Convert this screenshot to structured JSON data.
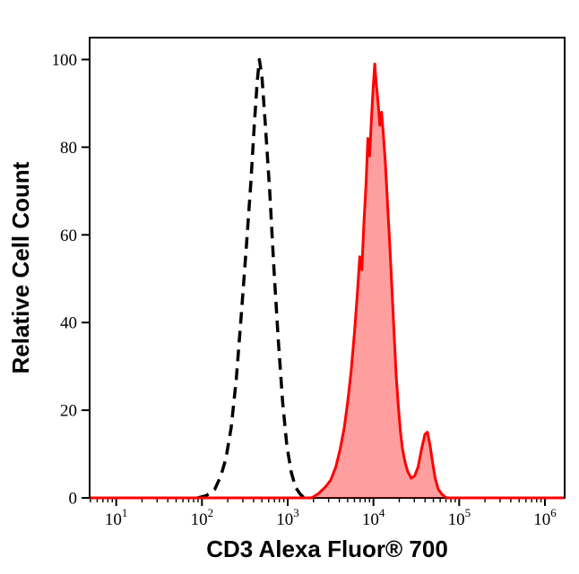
{
  "chart_data": {
    "type": "area",
    "title": "",
    "xlabel": "CD3 Alexa Fluor® 700",
    "ylabel": "Relative Cell Count",
    "x_scale": "log10",
    "xlim_log": [
      0.69,
      6.23
    ],
    "ylim": [
      0,
      105
    ],
    "grid": false,
    "legend": "none",
    "background_color": "#ffffff",
    "axis_color": "#000000",
    "y_ticks": [
      0,
      20,
      40,
      60,
      80,
      100
    ],
    "x_tick_base": "10",
    "x_tick_exponents": [
      1,
      2,
      3,
      4,
      5,
      6
    ],
    "series": [
      {
        "name": "dashed-black-control-curve",
        "color": "#000000",
        "fill": "none",
        "dash": "13 8",
        "stroke_width": 3.5,
        "peak_x": 470,
        "peak_y": 100,
        "points": [
          [
            1.95,
            0
          ],
          [
            2.05,
            0.5
          ],
          [
            2.15,
            2
          ],
          [
            2.22,
            5
          ],
          [
            2.28,
            9
          ],
          [
            2.34,
            16
          ],
          [
            2.4,
            27
          ],
          [
            2.46,
            42
          ],
          [
            2.52,
            58
          ],
          [
            2.57,
            72
          ],
          [
            2.61,
            85
          ],
          [
            2.645,
            95
          ],
          [
            2.67,
            100
          ],
          [
            2.7,
            96
          ],
          [
            2.74,
            85
          ],
          [
            2.79,
            70
          ],
          [
            2.84,
            52
          ],
          [
            2.89,
            36
          ],
          [
            2.94,
            22
          ],
          [
            2.99,
            12
          ],
          [
            3.04,
            6
          ],
          [
            3.09,
            2.5
          ],
          [
            3.14,
            1
          ],
          [
            3.19,
            0
          ]
        ]
      },
      {
        "name": "red-filled-stained-curve",
        "color": "#ff0000",
        "fill": "#ff0000",
        "fill_opacity": 0.38,
        "dash": "",
        "stroke_width": 3,
        "peak_x": 10500,
        "peak_y": 99,
        "secondary_peak_x": 42000,
        "secondary_peak_y": 15,
        "points": [
          [
            0.7,
            0
          ],
          [
            3.28,
            0
          ],
          [
            3.36,
            1
          ],
          [
            3.44,
            2.5
          ],
          [
            3.5,
            4
          ],
          [
            3.56,
            7
          ],
          [
            3.61,
            11
          ],
          [
            3.66,
            16
          ],
          [
            3.7,
            22
          ],
          [
            3.74,
            29
          ],
          [
            3.78,
            38
          ],
          [
            3.81,
            46
          ],
          [
            3.84,
            55
          ],
          [
            3.865,
            52
          ],
          [
            3.89,
            63
          ],
          [
            3.915,
            72
          ],
          [
            3.935,
            82
          ],
          [
            3.955,
            78
          ],
          [
            3.975,
            86
          ],
          [
            3.995,
            93
          ],
          [
            4.015,
            99
          ],
          [
            4.035,
            94
          ],
          [
            4.055,
            90
          ],
          [
            4.075,
            85
          ],
          [
            4.095,
            88
          ],
          [
            4.115,
            83
          ],
          [
            4.14,
            76
          ],
          [
            4.165,
            67
          ],
          [
            4.19,
            58
          ],
          [
            4.215,
            48
          ],
          [
            4.24,
            38
          ],
          [
            4.265,
            28
          ],
          [
            4.29,
            21
          ],
          [
            4.315,
            15
          ],
          [
            4.34,
            11
          ],
          [
            4.37,
            8
          ],
          [
            4.4,
            6
          ],
          [
            4.44,
            4.5
          ],
          [
            4.48,
            5
          ],
          [
            4.52,
            7
          ],
          [
            4.56,
            11
          ],
          [
            4.6,
            14.5
          ],
          [
            4.63,
            15
          ],
          [
            4.66,
            12
          ],
          [
            4.69,
            8
          ],
          [
            4.72,
            4.5
          ],
          [
            4.755,
            2
          ],
          [
            4.8,
            0.8
          ],
          [
            4.85,
            0
          ],
          [
            6.22,
            0
          ]
        ]
      }
    ]
  }
}
